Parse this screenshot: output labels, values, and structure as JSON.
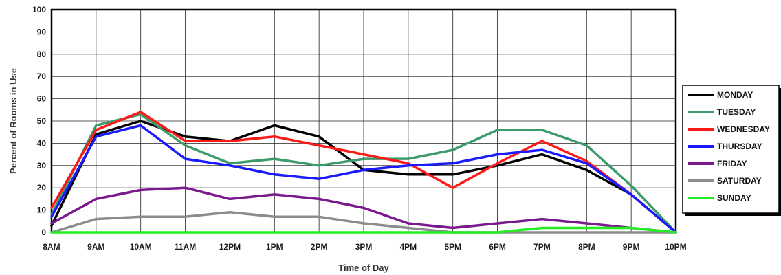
{
  "chart_data": {
    "type": "line",
    "title": "",
    "xlabel": "Time of Day",
    "ylabel": "Percent of Rooms in Use",
    "ylim": [
      0,
      100
    ],
    "y_ticks": [
      0,
      10,
      20,
      30,
      40,
      50,
      60,
      70,
      80,
      90,
      100
    ],
    "grid": true,
    "legend_position": "right",
    "categories": [
      "8AM",
      "9AM",
      "10AM",
      "11AM",
      "12PM",
      "1PM",
      "2PM",
      "3PM",
      "4PM",
      "5PM",
      "6PM",
      "7PM",
      "8PM",
      "9PM",
      "10PM"
    ],
    "series": [
      {
        "name": "MONDAY",
        "color": "#000000",
        "values": [
          3,
          44,
          50,
          43,
          41,
          48,
          43,
          28,
          26,
          26,
          30,
          35,
          28,
          17,
          0
        ]
      },
      {
        "name": "TUESDAY",
        "color": "#3d9a6a",
        "values": [
          8,
          48,
          53,
          39,
          31,
          33,
          30,
          33,
          33,
          37,
          46,
          46,
          39,
          21,
          0
        ]
      },
      {
        "name": "WEDNESDAY",
        "color": "#ff1a1a",
        "values": [
          11,
          46,
          54,
          41,
          41,
          43,
          39,
          35,
          31,
          20,
          31,
          41,
          32,
          17,
          0
        ]
      },
      {
        "name": "THURSDAY",
        "color": "#1a1aff",
        "values": [
          7,
          43,
          48,
          33,
          30,
          26,
          24,
          28,
          30,
          31,
          35,
          37,
          31,
          17,
          0
        ]
      },
      {
        "name": "FRIDAY",
        "color": "#7a1a8c",
        "values": [
          4,
          15,
          19,
          20,
          15,
          17,
          15,
          11,
          4,
          2,
          4,
          6,
          4,
          2,
          0
        ]
      },
      {
        "name": "SATURDAY",
        "color": "#8c8c8c",
        "values": [
          0,
          6,
          7,
          7,
          9,
          7,
          7,
          4,
          2,
          0,
          0,
          0,
          0,
          0,
          0
        ]
      },
      {
        "name": "SUNDAY",
        "color": "#22ee22",
        "values": [
          0,
          0,
          0,
          0,
          0,
          0,
          0,
          0,
          0,
          0,
          0,
          2,
          2,
          2,
          0
        ]
      }
    ]
  }
}
